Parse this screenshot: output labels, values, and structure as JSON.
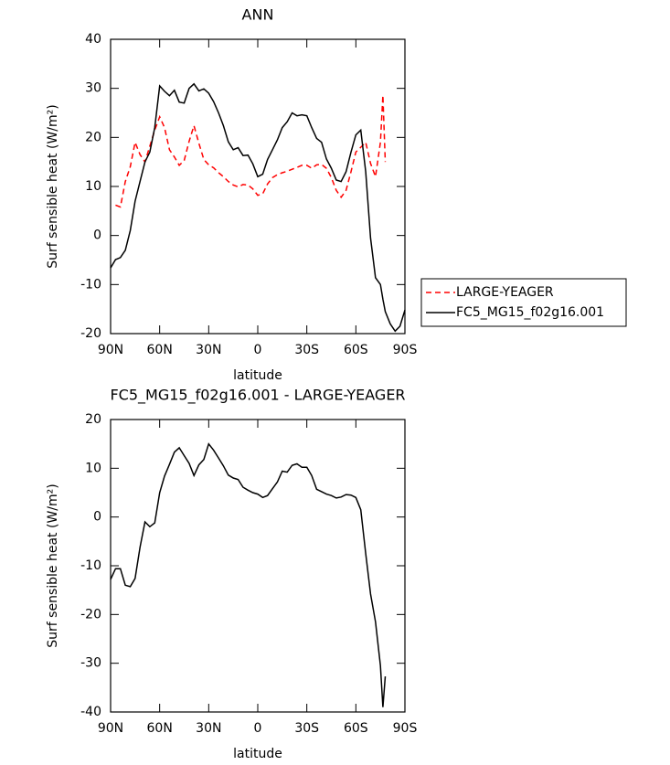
{
  "chart_data": [
    {
      "type": "line",
      "title": "ANN",
      "xlabel": "latitude",
      "ylabel": "Surf sensible heat (W/m²)",
      "x": [
        90,
        87,
        84,
        81,
        78,
        75,
        72,
        69,
        66,
        63,
        60,
        57,
        54,
        51,
        48,
        45,
        42,
        39,
        36,
        33,
        30,
        27,
        24,
        21,
        18,
        15,
        12,
        9,
        6,
        3,
        0,
        -3,
        -6,
        -9,
        -12,
        -15,
        -18,
        -21,
        -24,
        -27,
        -30,
        -33,
        -36,
        -39,
        -42,
        -45,
        -48,
        -51,
        -54,
        -57,
        -60,
        -63,
        -66,
        -69,
        -72,
        -75,
        -76.5,
        -78,
        -81,
        -84,
        -87,
        -90
      ],
      "series": [
        {
          "name": "LARGE-YEAGER",
          "color": "#ff0000",
          "dash": true,
          "values": [
            null,
            6.2,
            5.8,
            11,
            14,
            19,
            16.5,
            15,
            18.2,
            21.5,
            24.2,
            22,
            17.5,
            16,
            14.3,
            15.3,
            19.2,
            22.4,
            18.8,
            15.5,
            14.4,
            13.8,
            12.8,
            12,
            11,
            10.3,
            9.9,
            10.4,
            10.3,
            9.5,
            8.2,
            8.5,
            10.5,
            11.8,
            12.4,
            12.8,
            13.1,
            13.5,
            13.9,
            14.3,
            14.3,
            13.7,
            14.4,
            14.5,
            13.7,
            11.8,
            9.2,
            7.8,
            9.2,
            13,
            17,
            18,
            19,
            14.7,
            12,
            19,
            28.6,
            15,
            null,
            null,
            null,
            null
          ]
        },
        {
          "name": "FC5_MG15_f02g16.001",
          "color": "#000000",
          "dash": false,
          "values": [
            -6.6,
            -4.9,
            -4.5,
            -3,
            1,
            7,
            11,
            15,
            17,
            22,
            30.5,
            29.4,
            28.5,
            29.6,
            27.2,
            27,
            30,
            30.9,
            29.5,
            29.9,
            29,
            27.3,
            25,
            22.4,
            19.1,
            17.5,
            17.9,
            16.3,
            16.4,
            14.6,
            12,
            12.5,
            15.5,
            17.5,
            19.5,
            22,
            23.2,
            25,
            24.4,
            24.6,
            24.4,
            22,
            19.8,
            19,
            15.6,
            13.7,
            11.3,
            11,
            13,
            17,
            20.5,
            21.5,
            13,
            -0.5,
            -8.6,
            -10,
            -13,
            -15.5,
            -18,
            -19.5,
            -18.5,
            -15.2
          ]
        }
      ],
      "xlim": [
        90,
        -90
      ],
      "xticks": [
        {
          "value": 90,
          "label": "90N"
        },
        {
          "value": 60,
          "label": "60N"
        },
        {
          "value": 30,
          "label": "30N"
        },
        0,
        {
          "value": -30,
          "label": "30S"
        },
        {
          "value": -60,
          "label": "60S"
        },
        {
          "value": -90,
          "label": "90S"
        }
      ],
      "ylim": [
        -20,
        40
      ],
      "yticks": [
        40,
        30,
        20,
        10,
        0,
        -10,
        -20
      ],
      "legend": "right"
    },
    {
      "type": "line",
      "title": "FC5_MG15_f02g16.001 - LARGE-YEAGER",
      "xlabel": "latitude",
      "ylabel": "Surf sensible heat (W/m²)",
      "x": [
        90,
        87,
        84,
        81,
        78,
        75,
        72,
        69,
        66,
        63,
        60,
        57,
        54,
        51,
        48,
        45,
        42,
        39,
        36,
        33,
        30,
        27,
        24,
        21,
        18,
        15,
        12,
        9,
        6,
        3,
        0,
        -3,
        -6,
        -9,
        -12,
        -15,
        -18,
        -21,
        -24,
        -27,
        -30,
        -33,
        -36,
        -39,
        -42,
        -45,
        -48,
        -51,
        -54,
        -57,
        -60,
        -63,
        -66,
        -69,
        -72,
        -75,
        -76.5,
        -78,
        -81,
        -84,
        -87,
        -90
      ],
      "series": [
        {
          "color": "#000000",
          "dash": false,
          "values": [
            -12.8,
            -10.6,
            -10.6,
            -14,
            -14.3,
            -12.6,
            -6.2,
            -1,
            -2,
            -1.2,
            5,
            8.4,
            10.8,
            13.3,
            14.2,
            12.6,
            11,
            8.5,
            10.7,
            11.8,
            15,
            13.7,
            12.1,
            10.5,
            8.6,
            8,
            7.7,
            6.1,
            5.5,
            5,
            4.7,
            4,
            4.4,
            5.8,
            7.2,
            9.4,
            9.2,
            10.6,
            10.9,
            10.2,
            10.2,
            8.5,
            5.7,
            5.2,
            4.7,
            4.4,
            3.9,
            4.1,
            4.6,
            4.5,
            4,
            1.5,
            -7.5,
            -15.8,
            -21.5,
            -30.5,
            -39,
            -32.7,
            null,
            null,
            null,
            null
          ]
        }
      ],
      "xlim": [
        90,
        -90
      ],
      "xticks": [
        {
          "value": 90,
          "label": "90N"
        },
        {
          "value": 60,
          "label": "60N"
        },
        {
          "value": 30,
          "label": "30N"
        },
        0,
        {
          "value": -30,
          "label": "30S"
        },
        {
          "value": -60,
          "label": "60S"
        },
        {
          "value": -90,
          "label": "90S"
        }
      ],
      "ylim": [
        -40,
        20
      ],
      "yticks": [
        20,
        10,
        0,
        -10,
        -20,
        -30,
        -40
      ]
    }
  ]
}
